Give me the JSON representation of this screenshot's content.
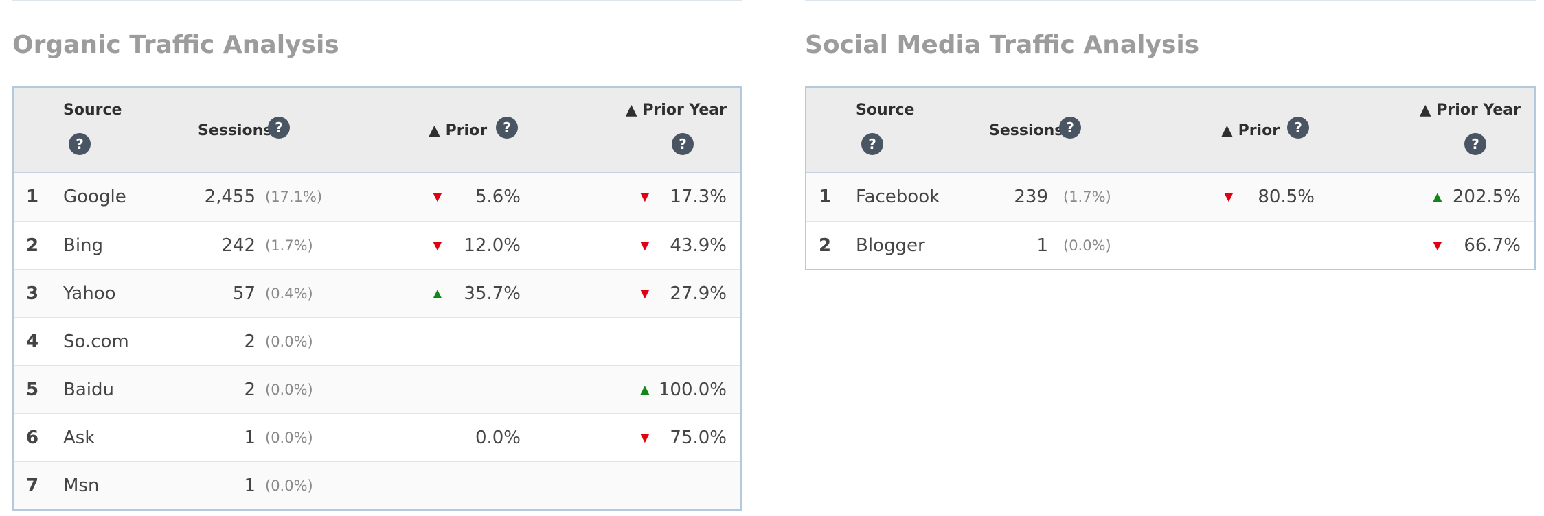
{
  "colors": {
    "down": "#e2000f",
    "up": "#11861b",
    "title": "#9c9c9c",
    "border": "#b5c9dc",
    "help_bg": "#4a5563"
  },
  "organic": {
    "title": "Organic Traffic Analysis",
    "headers": {
      "source": "Source",
      "sessions": "Sessions",
      "prior": "▲ Prior",
      "prior_year": "▲ Prior Year",
      "help": "?"
    },
    "rows": [
      {
        "rank": "1",
        "source": "Google",
        "sessions": "2,455",
        "share": "(17.1%)",
        "prior_dir": "down",
        "prior": "5.6%",
        "py_dir": "down",
        "prior_year": "17.3%"
      },
      {
        "rank": "2",
        "source": "Bing",
        "sessions": "242",
        "share": "(1.7%)",
        "prior_dir": "down",
        "prior": "12.0%",
        "py_dir": "down",
        "prior_year": "43.9%"
      },
      {
        "rank": "3",
        "source": "Yahoo",
        "sessions": "57",
        "share": "(0.4%)",
        "prior_dir": "up",
        "prior": "35.7%",
        "py_dir": "down",
        "prior_year": "27.9%"
      },
      {
        "rank": "4",
        "source": "So.com",
        "sessions": "2",
        "share": "(0.0%)",
        "prior_dir": "",
        "prior": "",
        "py_dir": "",
        "prior_year": ""
      },
      {
        "rank": "5",
        "source": "Baidu",
        "sessions": "2",
        "share": "(0.0%)",
        "prior_dir": "",
        "prior": "",
        "py_dir": "up",
        "prior_year": "100.0%"
      },
      {
        "rank": "6",
        "source": "Ask",
        "sessions": "1",
        "share": "(0.0%)",
        "prior_dir": "",
        "prior": "0.0%",
        "py_dir": "down",
        "prior_year": "75.0%"
      },
      {
        "rank": "7",
        "source": "Msn",
        "sessions": "1",
        "share": "(0.0%)",
        "prior_dir": "",
        "prior": "",
        "py_dir": "",
        "prior_year": ""
      }
    ]
  },
  "social": {
    "title": "Social Media Traffic Analysis",
    "headers": {
      "source": "Source",
      "sessions": "Sessions",
      "prior": "▲ Prior",
      "prior_year": "▲ Prior Year",
      "help": "?"
    },
    "rows": [
      {
        "rank": "1",
        "source": "Facebook",
        "sessions": "239",
        "share": "(1.7%)",
        "prior_dir": "down",
        "prior": "80.5%",
        "py_dir": "up",
        "prior_year": "202.5%"
      },
      {
        "rank": "2",
        "source": "Blogger",
        "sessions": "1",
        "share": "(0.0%)",
        "prior_dir": "",
        "prior": "",
        "py_dir": "down",
        "prior_year": "66.7%"
      }
    ]
  }
}
